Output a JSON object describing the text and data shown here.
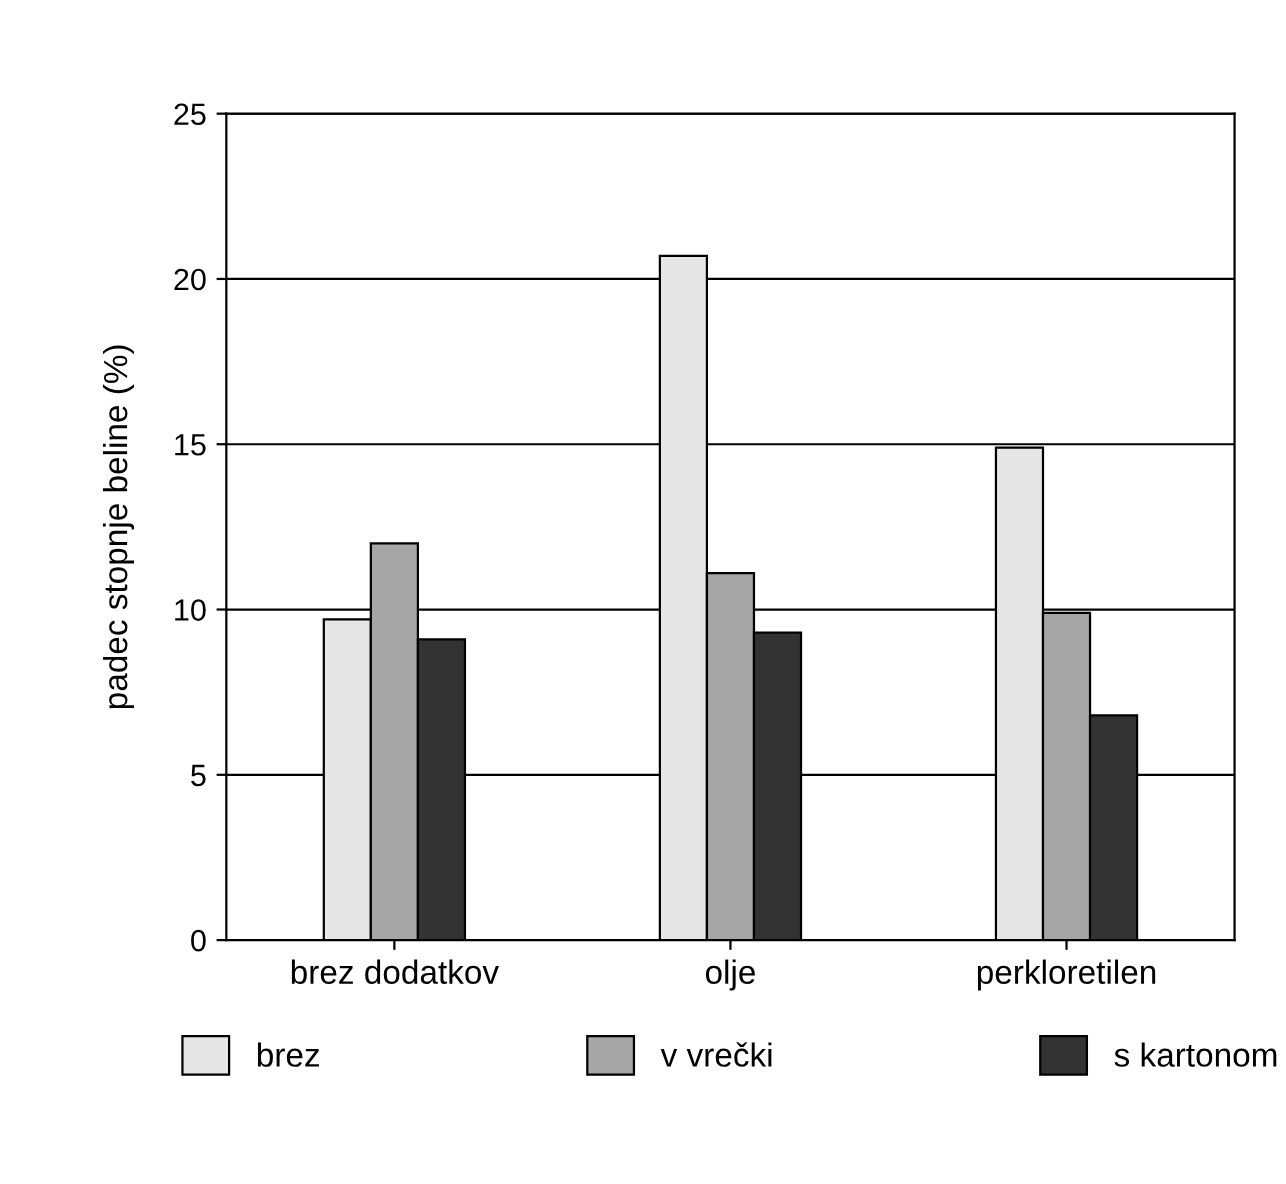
{
  "chart_data": {
    "type": "bar",
    "ylabel": "padec stopnje beline (%)",
    "categories": [
      "brez dodatkov",
      "olje",
      "perkloretilen"
    ],
    "series": [
      {
        "name": "brez",
        "color": "#e6e6e6",
        "values": [
          9.7,
          20.7,
          14.9
        ]
      },
      {
        "name": "v vrečki",
        "color": "#a6a6a6",
        "values": [
          12.0,
          11.1,
          9.9
        ]
      },
      {
        "name": "s kartonom",
        "color": "#333333",
        "values": [
          9.1,
          9.3,
          6.8
        ]
      }
    ],
    "ylim": [
      0,
      25
    ],
    "yticks": [
      0,
      5,
      10,
      15,
      20,
      25
    ],
    "grid": "y",
    "legend": "bottom"
  }
}
